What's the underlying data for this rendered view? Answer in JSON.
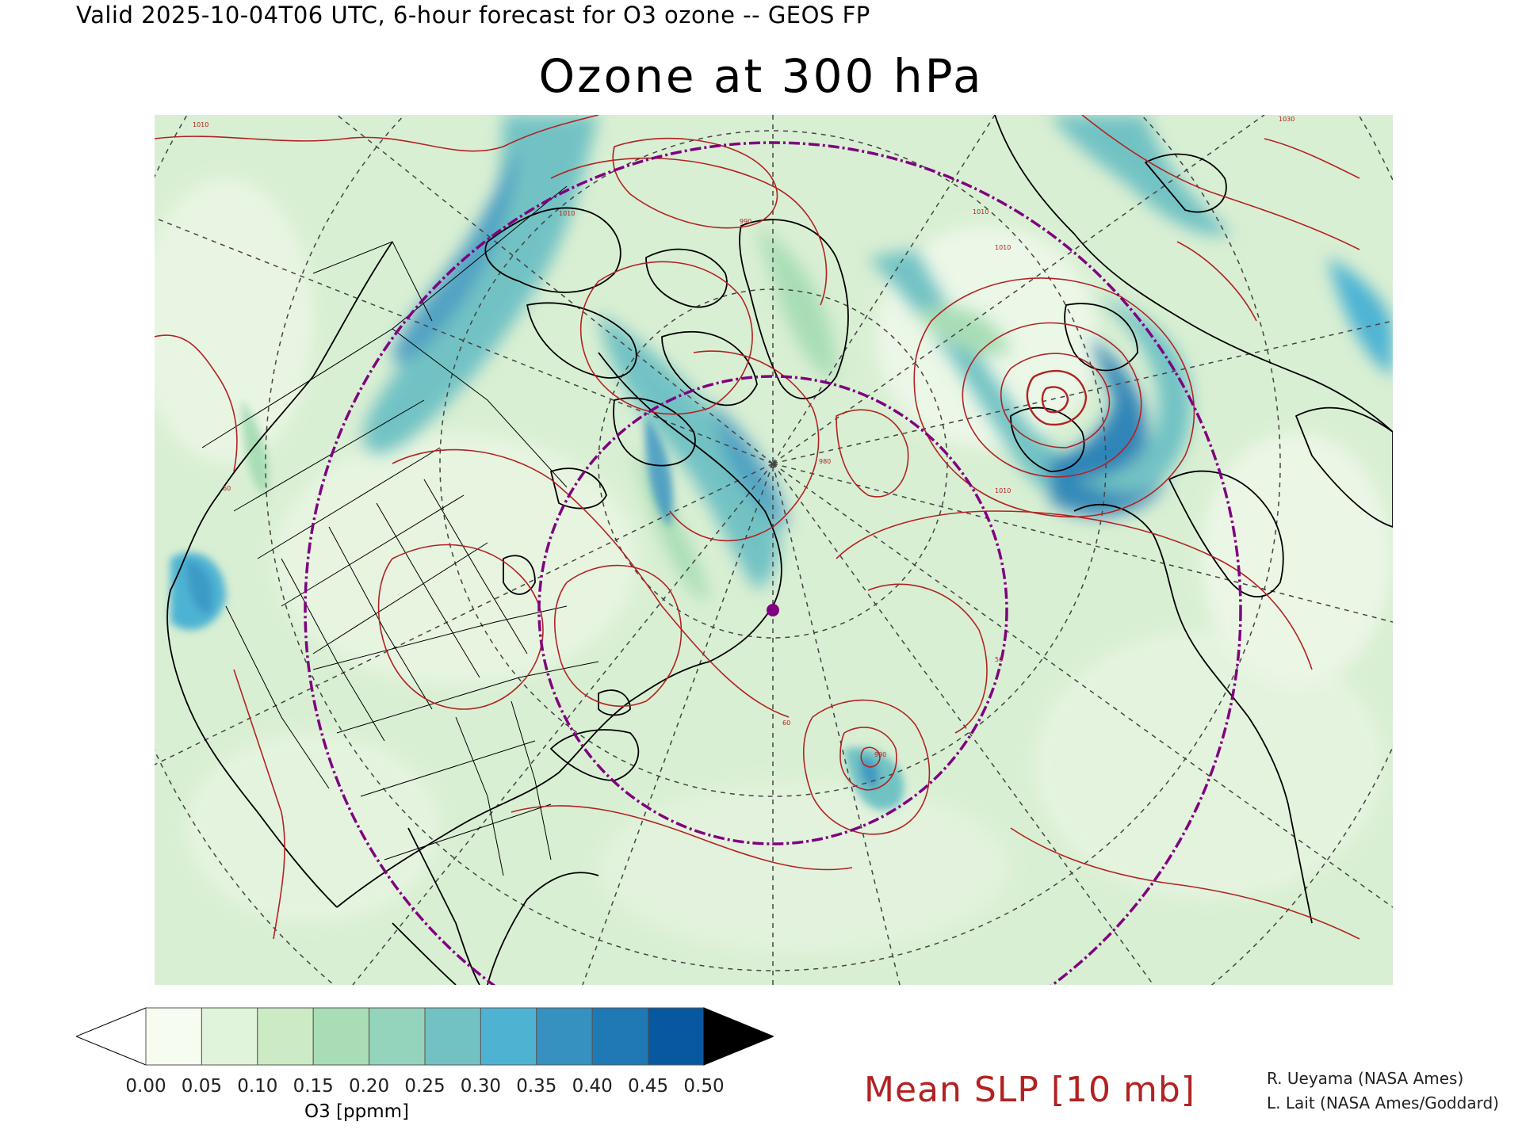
{
  "header": {
    "valid_line": "Valid 2025-10-04T06 UTC, 6-hour forecast for O3 ozone -- GEOS FP",
    "title": "Ozone at 300 hPa"
  },
  "colorbar": {
    "tick_labels": [
      "0.00",
      "0.05",
      "0.10",
      "0.15",
      "0.20",
      "0.25",
      "0.30",
      "0.35",
      "0.40",
      "0.45",
      "0.50"
    ],
    "units": "O3 [ppmm]",
    "colors": [
      "#f7fcf0",
      "#e0f3db",
      "#ccebc5",
      "#a8ddb5",
      "#94d3bc",
      "#72c2c4",
      "#4eb3d3",
      "#3690c0",
      "#1f79b5",
      "#0858a0"
    ],
    "under_color": "#ffffff",
    "over_color": "#000000"
  },
  "legend": {
    "slp_label": "Mean SLP [10 mb]",
    "slp_color": "#b22222"
  },
  "map": {
    "background_color": "#d9efd3",
    "range_ring_color": "#800080",
    "coastline_color": "#000000",
    "graticule_color": "#444444",
    "contour_labels": [
      "1010",
      "1010",
      "1010",
      "1010",
      "1010",
      "1030",
      "990",
      "990",
      "980",
      "60",
      "60",
      "50"
    ]
  },
  "credits": {
    "line1": "R. Ueyama (NASA Ames)",
    "line2": "L. Lait (NASA Ames/Goddard)"
  }
}
